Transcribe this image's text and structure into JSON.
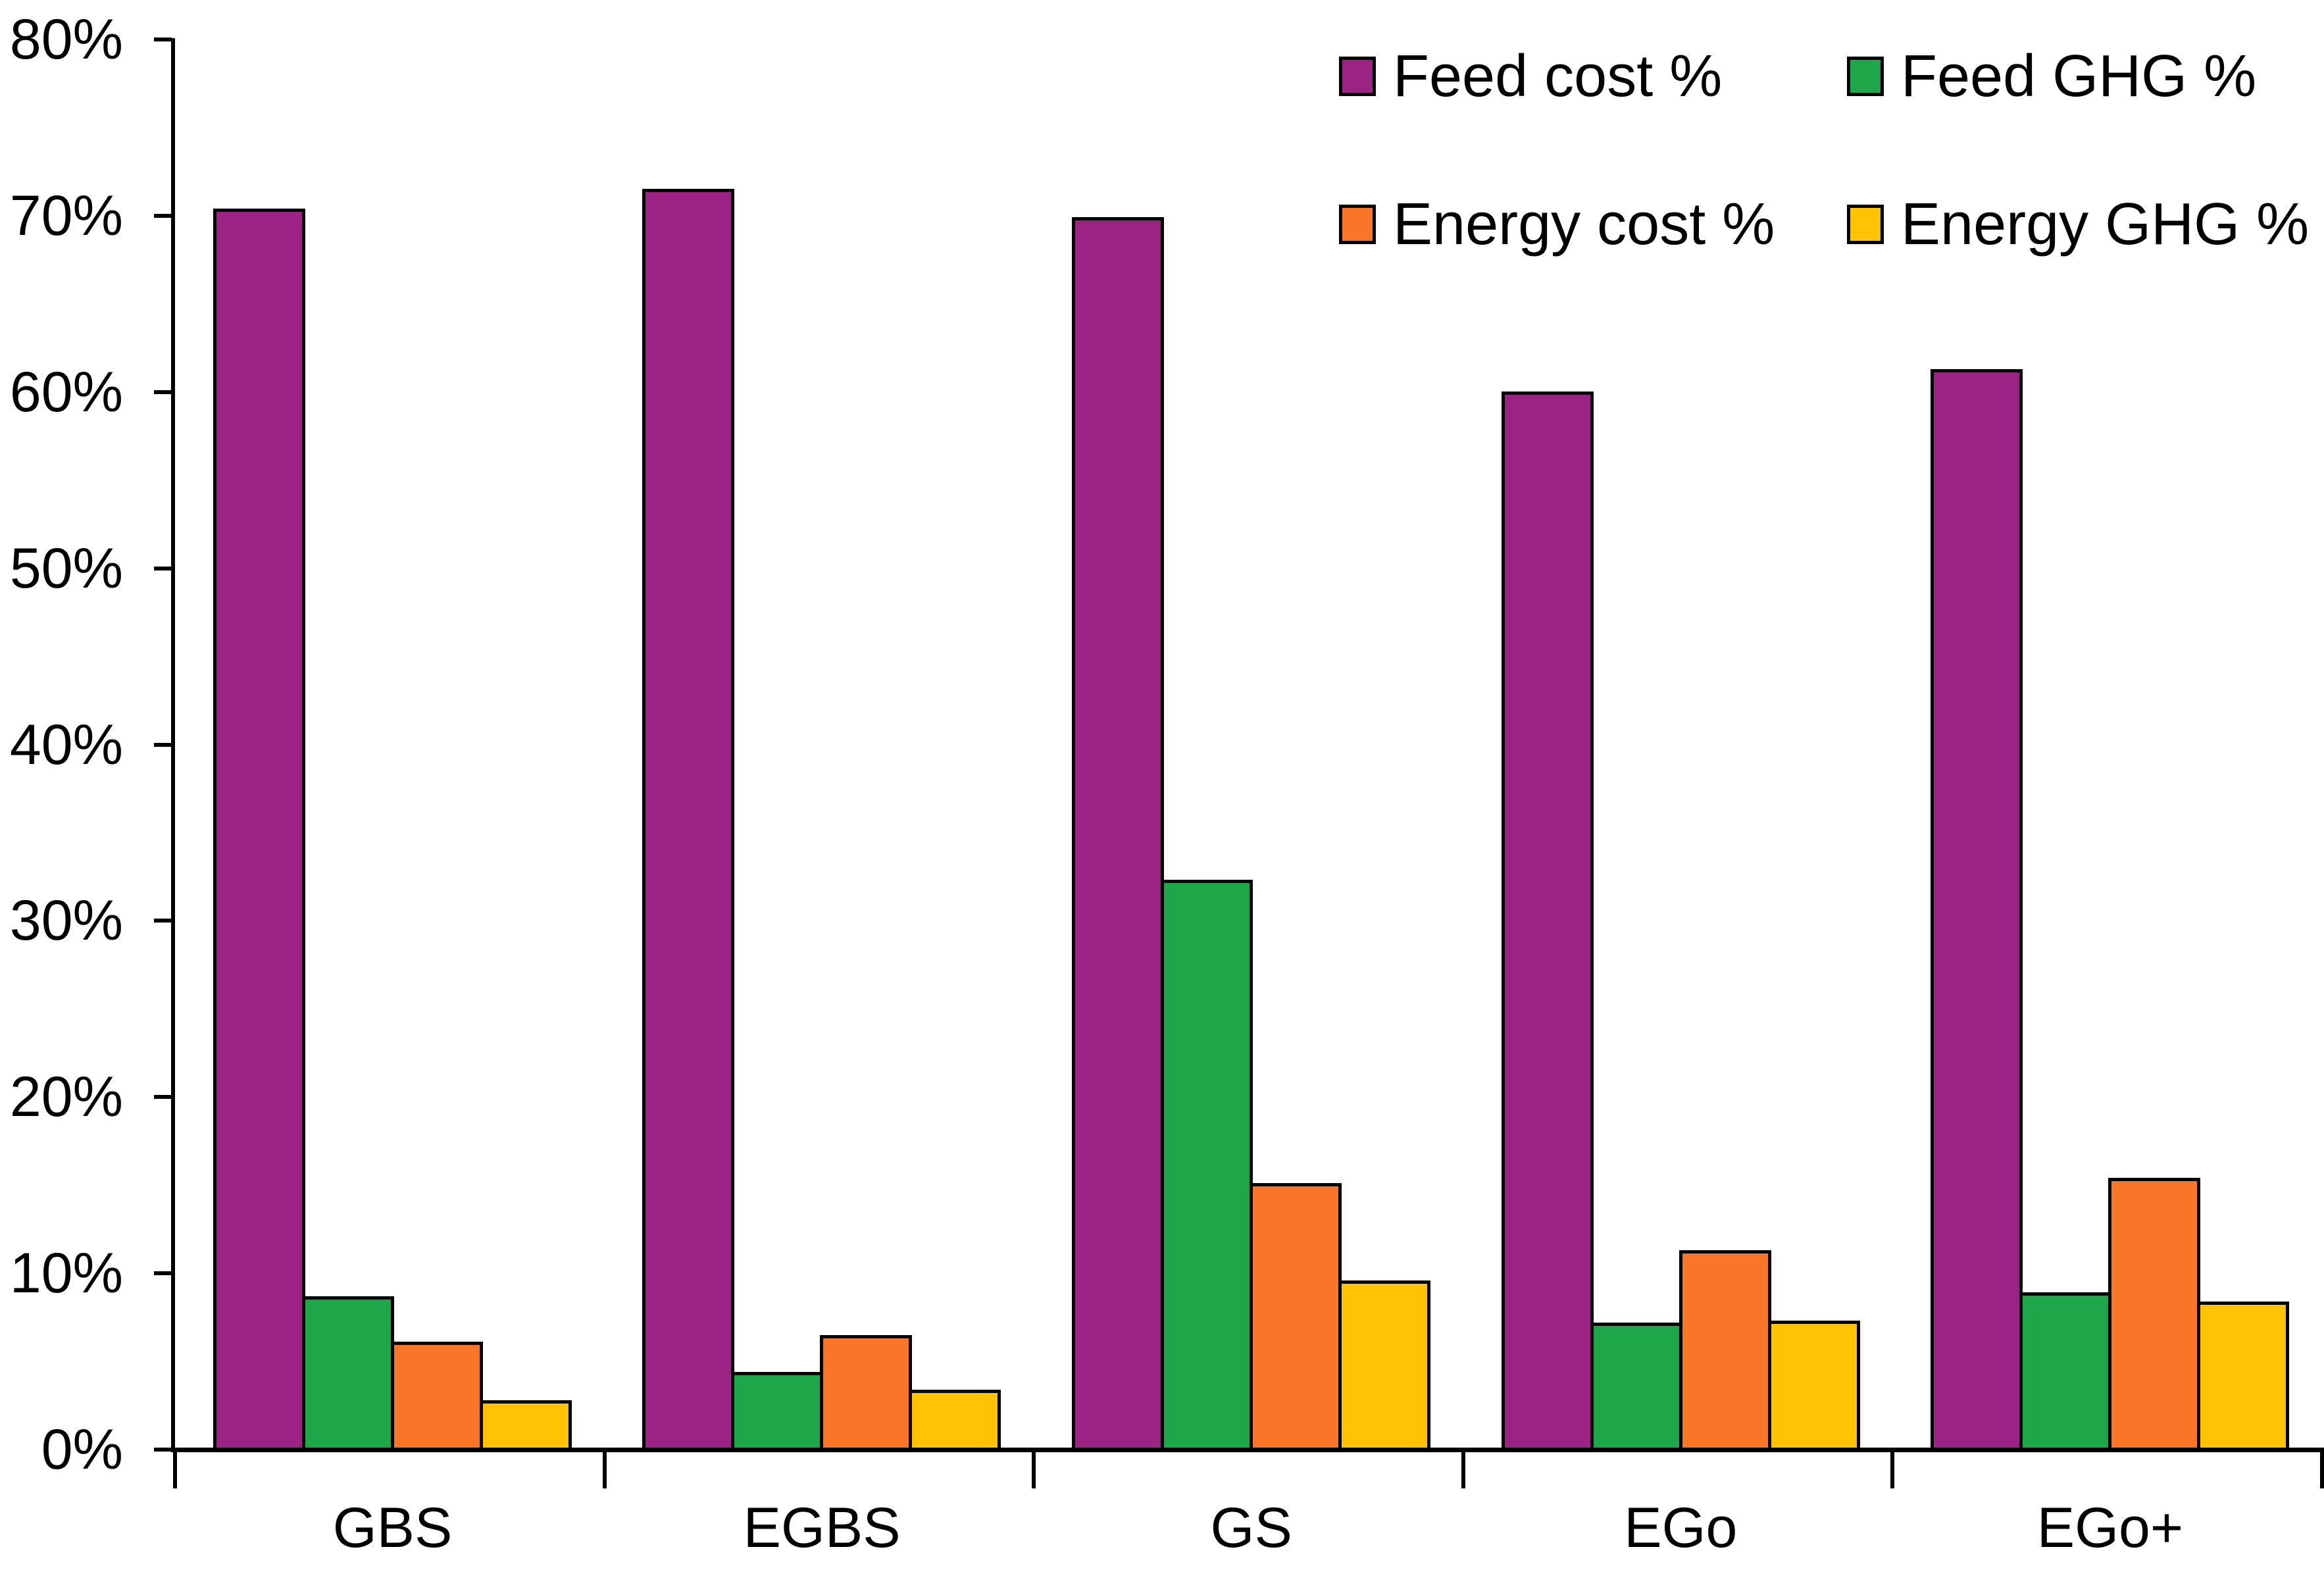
{
  "chart_data": {
    "type": "bar",
    "title": "",
    "xlabel": "",
    "ylabel": "",
    "categories": [
      "GBS",
      "EGBS",
      "GS",
      "EGo",
      "EGo+"
    ],
    "series": [
      {
        "name": "Feed cost %",
        "color": "#9B2383",
        "values": [
          70.3,
          71.4,
          69.8,
          59.9,
          61.2
        ]
      },
      {
        "name": "Feed GHG %",
        "color": "#1EA748",
        "values": [
          8.6,
          4.3,
          32.2,
          7.1,
          8.8
        ]
      },
      {
        "name": "Energy cost %",
        "color": "#F97629",
        "values": [
          6.0,
          6.4,
          15.0,
          11.2,
          15.3
        ]
      },
      {
        "name": "Energy GHG %",
        "color": "#FFC303",
        "values": [
          2.7,
          3.3,
          9.5,
          7.2,
          8.3
        ]
      }
    ],
    "ylim": [
      0,
      80
    ],
    "y_tick_step": 10,
    "y_tick_labels": [
      "0%",
      "10%",
      "20%",
      "30%",
      "40%",
      "50%",
      "60%",
      "70%",
      "80%"
    ],
    "grid": false,
    "legend_position": "top-right",
    "legend_rows": [
      [
        "Feed cost %",
        "Feed GHG %"
      ],
      [
        "Energy cost %",
        "Energy GHG %"
      ]
    ],
    "axis_color": "#000000",
    "bar_border_color": "#000000"
  }
}
